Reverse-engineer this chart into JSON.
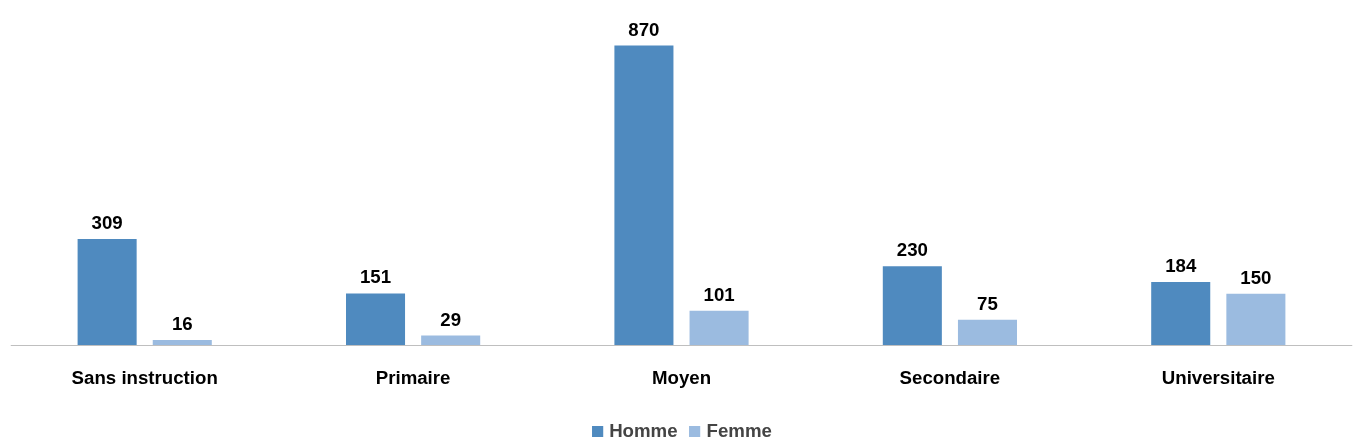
{
  "chart_data": {
    "type": "bar",
    "categories": [
      "Sans instruction",
      "Primaire",
      "Moyen",
      "Secondaire",
      "Universitaire"
    ],
    "series": [
      {
        "name": "Homme",
        "color": "#4f8abf",
        "values": [
          309,
          151,
          870,
          230,
          184
        ]
      },
      {
        "name": "Femme",
        "color": "#9bbbe0",
        "values": [
          16,
          29,
          101,
          75,
          150
        ]
      }
    ],
    "data_labels": true,
    "legend": "bottom",
    "grid": false
  }
}
